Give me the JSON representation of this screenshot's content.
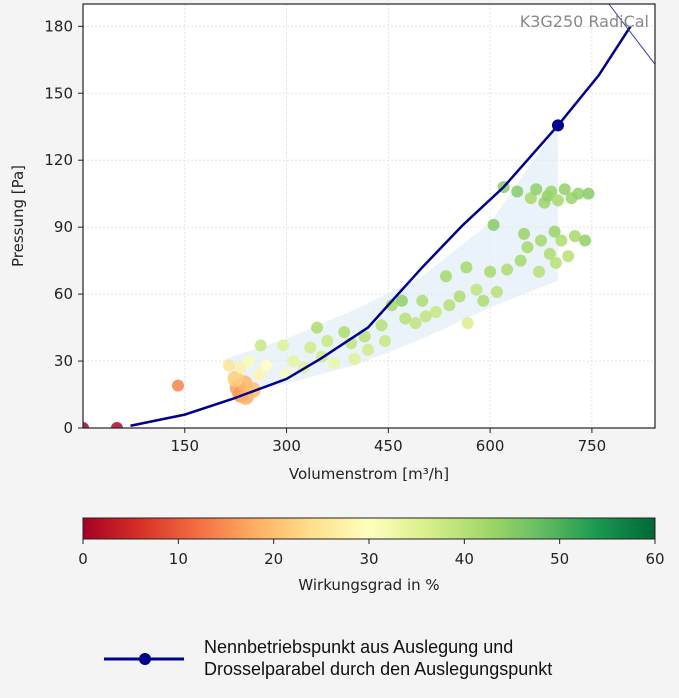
{
  "chart_data": {
    "type": "scatter",
    "title": "K3G250 RadiCal",
    "xlabel": "Volumenstrom [m³/h]",
    "ylabel": "Pressung [Pa]",
    "xlim": [
      0,
      843
    ],
    "ylim": [
      0,
      190
    ],
    "xticks": [
      "150",
      "300",
      "450",
      "600",
      "750"
    ],
    "xtick_values": [
      150,
      300,
      450,
      600,
      750
    ],
    "yticks": [
      "0",
      "30",
      "60",
      "90",
      "120",
      "150",
      "180"
    ],
    "ytick_values": [
      0,
      30,
      60,
      90,
      120,
      150,
      180
    ],
    "grid": true,
    "colors": {
      "curve": "#00008b",
      "band": "#dce9f7",
      "secondary_line": "#3a3aa0",
      "title": "#888888"
    },
    "colorbar": {
      "label": "Wirkungsgrad in %",
      "range": [
        0,
        60
      ],
      "ticks": [
        "0",
        "10",
        "20",
        "30",
        "40",
        "50",
        "60"
      ],
      "tick_values": [
        0,
        10,
        20,
        30,
        40,
        50,
        60
      ],
      "colormap": "RdYlGn"
    },
    "operating_point": {
      "x": 700,
      "y": 135.6
    },
    "throttle_curve": [
      {
        "x": 70,
        "y": 1
      },
      {
        "x": 150,
        "y": 6
      },
      {
        "x": 220,
        "y": 13
      },
      {
        "x": 300,
        "y": 22
      },
      {
        "x": 350,
        "y": 31
      },
      {
        "x": 420,
        "y": 45
      },
      {
        "x": 500,
        "y": 72
      },
      {
        "x": 560,
        "y": 91
      },
      {
        "x": 620,
        "y": 108
      },
      {
        "x": 700,
        "y": 135.6
      },
      {
        "x": 760,
        "y": 158
      },
      {
        "x": 807,
        "y": 180
      }
    ],
    "secondary_line": [
      {
        "x": 775,
        "y": 190
      },
      {
        "x": 843,
        "y": 163
      }
    ],
    "band_upper": [
      {
        "x": 210,
        "y": 31
      },
      {
        "x": 300,
        "y": 40
      },
      {
        "x": 400,
        "y": 53
      },
      {
        "x": 500,
        "y": 68
      },
      {
        "x": 600,
        "y": 92
      },
      {
        "x": 700,
        "y": 135.6
      }
    ],
    "band_lower": [
      {
        "x": 700,
        "y": 66
      },
      {
        "x": 600,
        "y": 54
      },
      {
        "x": 500,
        "y": 40
      },
      {
        "x": 400,
        "y": 28
      },
      {
        "x": 300,
        "y": 20
      },
      {
        "x": 220,
        "y": 14
      }
    ],
    "points": [
      {
        "x": 0,
        "y": 0,
        "eff": 0
      },
      {
        "x": 50,
        "y": 0,
        "eff": 1
      },
      {
        "x": 140,
        "y": 19,
        "eff": 14
      },
      {
        "x": 228,
        "y": 18,
        "eff": 17
      },
      {
        "x": 232,
        "y": 15,
        "eff": 16
      },
      {
        "x": 240,
        "y": 14,
        "eff": 18
      },
      {
        "x": 238,
        "y": 20,
        "eff": 19
      },
      {
        "x": 225,
        "y": 22,
        "eff": 22
      },
      {
        "x": 250,
        "y": 17,
        "eff": 20
      },
      {
        "x": 215,
        "y": 28,
        "eff": 25
      },
      {
        "x": 232,
        "y": 27,
        "eff": 27
      },
      {
        "x": 245,
        "y": 30,
        "eff": 31
      },
      {
        "x": 262,
        "y": 37,
        "eff": 38
      },
      {
        "x": 260,
        "y": 24,
        "eff": 28
      },
      {
        "x": 270,
        "y": 28,
        "eff": 30
      },
      {
        "x": 295,
        "y": 37,
        "eff": 35
      },
      {
        "x": 300,
        "y": 24,
        "eff": 31
      },
      {
        "x": 310,
        "y": 30,
        "eff": 34
      },
      {
        "x": 325,
        "y": 27,
        "eff": 35
      },
      {
        "x": 335,
        "y": 36,
        "eff": 37
      },
      {
        "x": 345,
        "y": 45,
        "eff": 41
      },
      {
        "x": 352,
        "y": 32,
        "eff": 37
      },
      {
        "x": 360,
        "y": 39,
        "eff": 38
      },
      {
        "x": 370,
        "y": 29,
        "eff": 33
      },
      {
        "x": 385,
        "y": 43,
        "eff": 41
      },
      {
        "x": 395,
        "y": 38,
        "eff": 39
      },
      {
        "x": 400,
        "y": 31,
        "eff": 35
      },
      {
        "x": 415,
        "y": 41,
        "eff": 40
      },
      {
        "x": 420,
        "y": 35,
        "eff": 37
      },
      {
        "x": 440,
        "y": 46,
        "eff": 40
      },
      {
        "x": 445,
        "y": 39,
        "eff": 38
      },
      {
        "x": 455,
        "y": 55,
        "eff": 42
      },
      {
        "x": 470,
        "y": 57,
        "eff": 44
      },
      {
        "x": 475,
        "y": 49,
        "eff": 40
      },
      {
        "x": 490,
        "y": 47,
        "eff": 39
      },
      {
        "x": 500,
        "y": 57,
        "eff": 41
      },
      {
        "x": 505,
        "y": 50,
        "eff": 39
      },
      {
        "x": 520,
        "y": 52,
        "eff": 38
      },
      {
        "x": 535,
        "y": 68,
        "eff": 42
      },
      {
        "x": 540,
        "y": 55,
        "eff": 40
      },
      {
        "x": 555,
        "y": 59,
        "eff": 41
      },
      {
        "x": 565,
        "y": 72,
        "eff": 42
      },
      {
        "x": 567,
        "y": 47,
        "eff": 36
      },
      {
        "x": 580,
        "y": 62,
        "eff": 39
      },
      {
        "x": 590,
        "y": 57,
        "eff": 41
      },
      {
        "x": 600,
        "y": 70,
        "eff": 42
      },
      {
        "x": 605,
        "y": 91,
        "eff": 45
      },
      {
        "x": 610,
        "y": 61,
        "eff": 40
      },
      {
        "x": 620,
        "y": 108,
        "eff": 45
      },
      {
        "x": 625,
        "y": 71,
        "eff": 41
      },
      {
        "x": 640,
        "y": 106,
        "eff": 45
      },
      {
        "x": 645,
        "y": 75,
        "eff": 42
      },
      {
        "x": 650,
        "y": 87,
        "eff": 43
      },
      {
        "x": 655,
        "y": 81,
        "eff": 42
      },
      {
        "x": 660,
        "y": 103,
        "eff": 42
      },
      {
        "x": 668,
        "y": 107,
        "eff": 44
      },
      {
        "x": 672,
        "y": 70,
        "eff": 40
      },
      {
        "x": 675,
        "y": 84,
        "eff": 42
      },
      {
        "x": 680,
        "y": 101,
        "eff": 43
      },
      {
        "x": 685,
        "y": 104,
        "eff": 44
      },
      {
        "x": 688,
        "y": 78,
        "eff": 41
      },
      {
        "x": 690,
        "y": 106,
        "eff": 43
      },
      {
        "x": 695,
        "y": 88,
        "eff": 43
      },
      {
        "x": 697,
        "y": 74,
        "eff": 40
      },
      {
        "x": 700,
        "y": 102,
        "eff": 42
      },
      {
        "x": 705,
        "y": 84,
        "eff": 41
      },
      {
        "x": 710,
        "y": 107,
        "eff": 44
      },
      {
        "x": 715,
        "y": 77,
        "eff": 40
      },
      {
        "x": 720,
        "y": 103,
        "eff": 43
      },
      {
        "x": 725,
        "y": 86,
        "eff": 42
      },
      {
        "x": 730,
        "y": 105,
        "eff": 44
      },
      {
        "x": 740,
        "y": 84,
        "eff": 44
      },
      {
        "x": 745,
        "y": 105,
        "eff": 45
      }
    ]
  },
  "legend": {
    "line1": "Nennbetriebspunkt aus Auslegung und",
    "line2": "Drosselparabel durch den Auslegungspunkt"
  }
}
